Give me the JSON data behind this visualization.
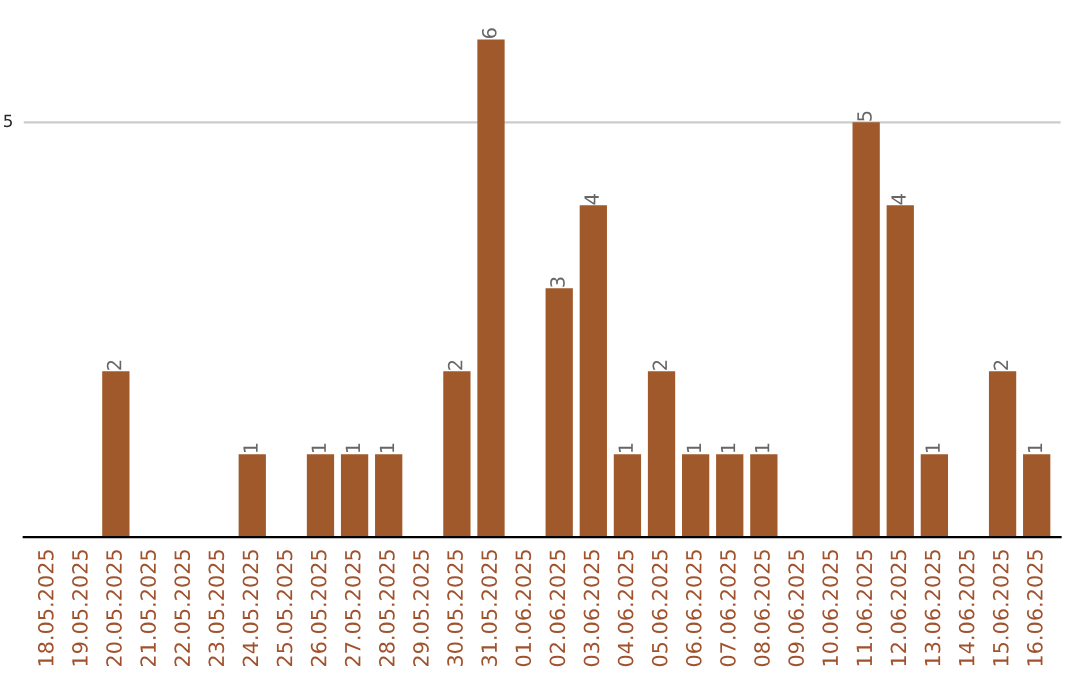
{
  "chart_data": {
    "type": "bar",
    "categories": [
      "18.05.2025",
      "19.05.2025",
      "20.05.2025",
      "21.05.2025",
      "22.05.2025",
      "23.05.2025",
      "24.05.2025",
      "25.05.2025",
      "26.05.2025",
      "27.05.2025",
      "28.05.2025",
      "29.05.2025",
      "30.05.2025",
      "31.05.2025",
      "01.06.2025",
      "02.06.2025",
      "03.06.2025",
      "04.06.2025",
      "05.06.2025",
      "06.06.2025",
      "07.06.2025",
      "08.06.2025",
      "09.06.2025",
      "10.06.2025",
      "11.06.2025",
      "12.06.2025",
      "13.06.2025",
      "14.06.2025",
      "15.06.2025",
      "16.06.2025"
    ],
    "values": [
      0,
      0,
      2,
      0,
      0,
      0,
      1,
      0,
      1,
      1,
      1,
      0,
      2,
      6,
      0,
      3,
      4,
      1,
      2,
      1,
      1,
      1,
      0,
      0,
      5,
      4,
      1,
      0,
      2,
      1
    ],
    "value_labels": [
      null,
      null,
      "2",
      null,
      null,
      null,
      "1",
      null,
      "1",
      "1",
      "1",
      null,
      "2",
      "6",
      null,
      "3",
      "4",
      "1",
      "2",
      "1",
      "1",
      "1",
      null,
      null,
      "5",
      "4",
      "1",
      null,
      "2",
      "1"
    ],
    "color": "#a0592a",
    "ref_lines": [
      {
        "axis": "y",
        "value": 5,
        "label": "5",
        "color": "#cccccc"
      }
    ]
  }
}
